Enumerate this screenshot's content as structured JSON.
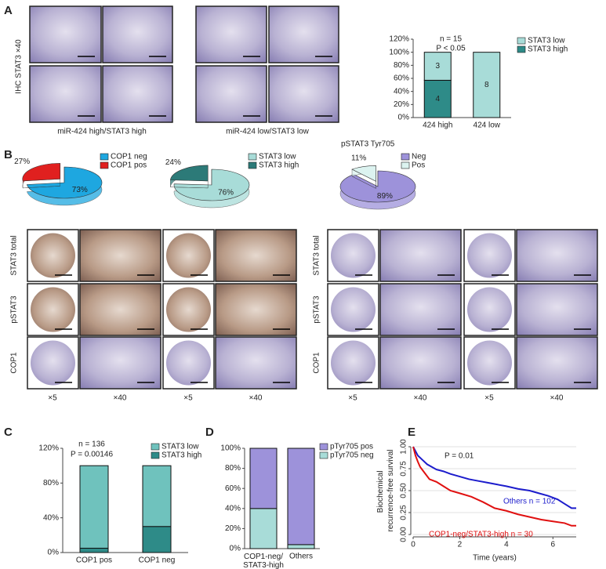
{
  "panel_labels": [
    "A",
    "B",
    "C",
    "D",
    "E"
  ],
  "panel_a": {
    "y_label": "IHC STAT3 ×40",
    "captions": [
      "miR-424 high/STAT3 high",
      "miR-424 low/STAT3 low"
    ]
  },
  "panel_b": {
    "row_labels": [
      "STAT3 total",
      "pSTAT3",
      "COP1"
    ],
    "column_labels": [
      "×5",
      "×40"
    ]
  },
  "chart_data": [
    {
      "type": "bar",
      "stacked": true,
      "categories": [
        "424 high",
        "424 low"
      ],
      "ylim": [
        0,
        120
      ],
      "yticks": [
        {
          "value": 0,
          "label": "0%"
        },
        {
          "value": 20,
          "label": "20%"
        },
        {
          "value": 40,
          "label": "40%"
        },
        {
          "value": 60,
          "label": "60%"
        },
        {
          "value": 80,
          "label": "80%"
        },
        {
          "value": 100,
          "label": "100%"
        },
        {
          "value": 120,
          "label": "120%"
        }
      ],
      "series": [
        {
          "name": "STAT3 high",
          "color": "#2e8b88",
          "values": [
            57.1,
            0
          ],
          "counts": [
            4,
            null
          ]
        },
        {
          "name": "STAT3 low",
          "color": "#a8dcd8",
          "values": [
            42.9,
            100
          ],
          "counts": [
            3,
            8
          ]
        }
      ],
      "annotations": [
        "n = 15",
        "P < 0.05"
      ]
    },
    {
      "type": "pie",
      "categories": [
        "COP1 neg",
        "COP1 pos"
      ],
      "values": [
        73,
        27
      ],
      "value_labels": [
        "73%",
        "27%"
      ],
      "colors": [
        "#1ea7e0",
        "#e0201f"
      ]
    },
    {
      "type": "pie",
      "categories": [
        "STAT3 low",
        "STAT3 high"
      ],
      "values": [
        76,
        24
      ],
      "value_labels": [
        "76%",
        "24%"
      ],
      "colors": [
        "#a8dcd8",
        "#2c7a78"
      ]
    },
    {
      "type": "pie",
      "title": "pSTAT3 Tyr705",
      "categories": [
        "Neg",
        "Pos"
      ],
      "values": [
        89,
        11
      ],
      "value_labels": [
        "89%",
        "11%"
      ],
      "colors": [
        "#9d92da",
        "#dcf3f0"
      ]
    },
    {
      "type": "bar",
      "stacked": true,
      "categories": [
        "COP1 pos",
        "COP1 neg"
      ],
      "ylim": [
        0,
        120
      ],
      "yticks": [
        {
          "value": 0,
          "label": "0%"
        },
        {
          "value": 40,
          "label": "40%"
        },
        {
          "value": 80,
          "label": "80%"
        },
        {
          "value": 120,
          "label": "120%"
        }
      ],
      "series": [
        {
          "name": "STAT3 high",
          "color": "#2e8b88",
          "values": [
            5,
            30
          ]
        },
        {
          "name": "STAT3 low",
          "color": "#6fc2bd",
          "values": [
            95,
            70
          ]
        }
      ],
      "annotations": [
        "n = 136",
        "P = 0.00146"
      ]
    },
    {
      "type": "bar",
      "stacked": true,
      "categories": [
        "COP1-neg/STAT3-high",
        "Others"
      ],
      "ylim": [
        0,
        100
      ],
      "yticks": [
        {
          "value": 0,
          "label": "0%"
        },
        {
          "value": 20,
          "label": "20%"
        },
        {
          "value": 40,
          "label": "40%"
        },
        {
          "value": 60,
          "label": "60%"
        },
        {
          "value": 80,
          "label": "80%"
        },
        {
          "value": 100,
          "label": "100%"
        }
      ],
      "series": [
        {
          "name": "pTyr705 neg",
          "color": "#a8dcd8",
          "values": [
            40,
            4
          ]
        },
        {
          "name": "pTyr705 pos",
          "color": "#9d92da",
          "values": [
            60,
            96
          ]
        }
      ]
    },
    {
      "type": "line",
      "x_label": "Time (years)",
      "y_label": "Biochemical recurrence-free survival",
      "xlim": [
        0,
        7
      ],
      "ylim": [
        0,
        1
      ],
      "xticks": [
        0,
        2,
        4,
        6
      ],
      "yticks": [
        {
          "value": 0,
          "label": "0.00"
        },
        {
          "value": 0.25,
          "label": "0.25"
        },
        {
          "value": 0.5,
          "label": "0.50"
        },
        {
          "value": 0.75,
          "label": "0.75"
        },
        {
          "value": 1,
          "label": "1.00"
        }
      ],
      "grid": true,
      "series": [
        {
          "color": "#1c1ccc",
          "x": [
            0,
            0.1,
            0.2,
            0.4,
            0.6,
            0.8,
            1.0,
            1.3,
            1.6,
            2.0,
            2.4,
            2.8,
            3.2,
            3.6,
            4.0,
            4.5,
            5.0,
            5.4,
            5.8,
            6.2,
            6.5,
            6.8,
            7.0
          ],
          "values": [
            1.0,
            0.95,
            0.9,
            0.85,
            0.8,
            0.77,
            0.74,
            0.72,
            0.69,
            0.66,
            0.63,
            0.61,
            0.59,
            0.57,
            0.55,
            0.52,
            0.5,
            0.47,
            0.44,
            0.4,
            0.35,
            0.3,
            0.3
          ]
        },
        {
          "color": "#e01010",
          "x": [
            0,
            0.1,
            0.2,
            0.3,
            0.5,
            0.7,
            1.0,
            1.3,
            1.6,
            2.0,
            2.5,
            3.0,
            3.5,
            4.0,
            4.5,
            5.0,
            5.5,
            6.0,
            6.5,
            6.8,
            7.0
          ],
          "values": [
            1.0,
            0.9,
            0.83,
            0.77,
            0.7,
            0.63,
            0.6,
            0.55,
            0.5,
            0.47,
            0.43,
            0.37,
            0.3,
            0.27,
            0.23,
            0.2,
            0.17,
            0.15,
            0.13,
            0.1,
            0.1
          ]
        }
      ],
      "annotations": [
        "P = 0.01",
        "Others n = 102",
        "COP1-neg/STAT3-high n = 30"
      ]
    }
  ]
}
